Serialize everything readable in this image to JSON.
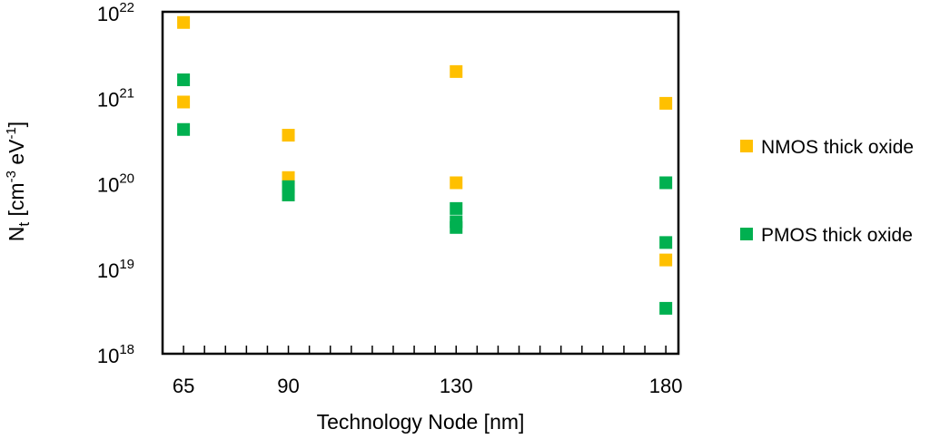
{
  "chart_data": {
    "type": "scatter",
    "title": "",
    "xlabel": "Technology Node  [nm]",
    "ylabel_main": "N",
    "ylabel_sub": "t",
    "ylabel_rest1": " [cm",
    "ylabel_sup1": "-3",
    "ylabel_rest2": " eV",
    "ylabel_sup2": "-1",
    "ylabel_rest3": "]",
    "x_ticks": [
      65,
      90,
      130,
      180
    ],
    "xlim": [
      60,
      183
    ],
    "y_scale": "log",
    "ylim": [
      1e+18,
      1e+22
    ],
    "y_tick_base": "10",
    "y_tick_exponents": [
      "18",
      "19",
      "20",
      "21",
      "22"
    ],
    "grid": false,
    "legend_position": "right",
    "series": [
      {
        "name": "NMOS thick oxide",
        "color": "#FFC000",
        "points": [
          {
            "x": 65,
            "y": 7.5e+21
          },
          {
            "x": 65,
            "y": 8.8e+20
          },
          {
            "x": 90,
            "y": 3.6e+20
          },
          {
            "x": 90,
            "y": 1.15e+20
          },
          {
            "x": 130,
            "y": 2e+21
          },
          {
            "x": 130,
            "y": 1e+20
          },
          {
            "x": 180,
            "y": 8.5e+20
          },
          {
            "x": 180,
            "y": 1.25e+19
          }
        ]
      },
      {
        "name": "PMOS thick oxide",
        "color": "#00B050",
        "points": [
          {
            "x": 65,
            "y": 1.6e+21
          },
          {
            "x": 65,
            "y": 4.2e+20
          },
          {
            "x": 90,
            "y": 9e+19
          },
          {
            "x": 90,
            "y": 7.2e+19
          },
          {
            "x": 130,
            "y": 5e+19
          },
          {
            "x": 130,
            "y": 3.5e+19
          },
          {
            "x": 130,
            "y": 3e+19
          },
          {
            "x": 180,
            "y": 1e+20
          },
          {
            "x": 180,
            "y": 2e+19
          },
          {
            "x": 180,
            "y": 3.4e+18
          }
        ]
      }
    ]
  }
}
